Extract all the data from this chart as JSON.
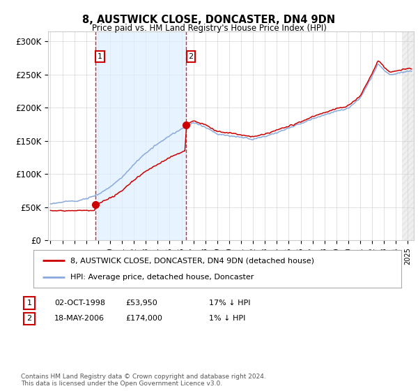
{
  "title1": "8, AUSTWICK CLOSE, DONCASTER, DN4 9DN",
  "title2": "Price paid vs. HM Land Registry's House Price Index (HPI)",
  "ylabel_ticks": [
    "£0",
    "£50K",
    "£100K",
    "£150K",
    "£200K",
    "£250K",
    "£300K"
  ],
  "ytick_values": [
    0,
    50000,
    100000,
    150000,
    200000,
    250000,
    300000
  ],
  "ylim": [
    0,
    315000
  ],
  "xlim_start": 1994.8,
  "xlim_end": 2025.5,
  "purchase1_date": 1998.75,
  "purchase1_price": 53950,
  "purchase2_date": 2006.38,
  "purchase2_price": 174000,
  "red_line_color": "#cc0000",
  "blue_line_color": "#88aadd",
  "grid_color": "#cccccc",
  "background_color": "#ffffff",
  "shaded_color": "#ddeeff",
  "legend_line1": "8, AUSTWICK CLOSE, DONCASTER, DN4 9DN (detached house)",
  "legend_line2": "HPI: Average price, detached house, Doncaster",
  "table_row1": [
    "1",
    "02-OCT-1998",
    "£53,950",
    "17% ↓ HPI"
  ],
  "table_row2": [
    "2",
    "18-MAY-2006",
    "£174,000",
    "1% ↓ HPI"
  ],
  "footnote": "Contains HM Land Registry data © Crown copyright and database right 2024.\nThis data is licensed under the Open Government Licence v3.0.",
  "hatch_start": 2024.5,
  "hatch_end": 2026.0
}
